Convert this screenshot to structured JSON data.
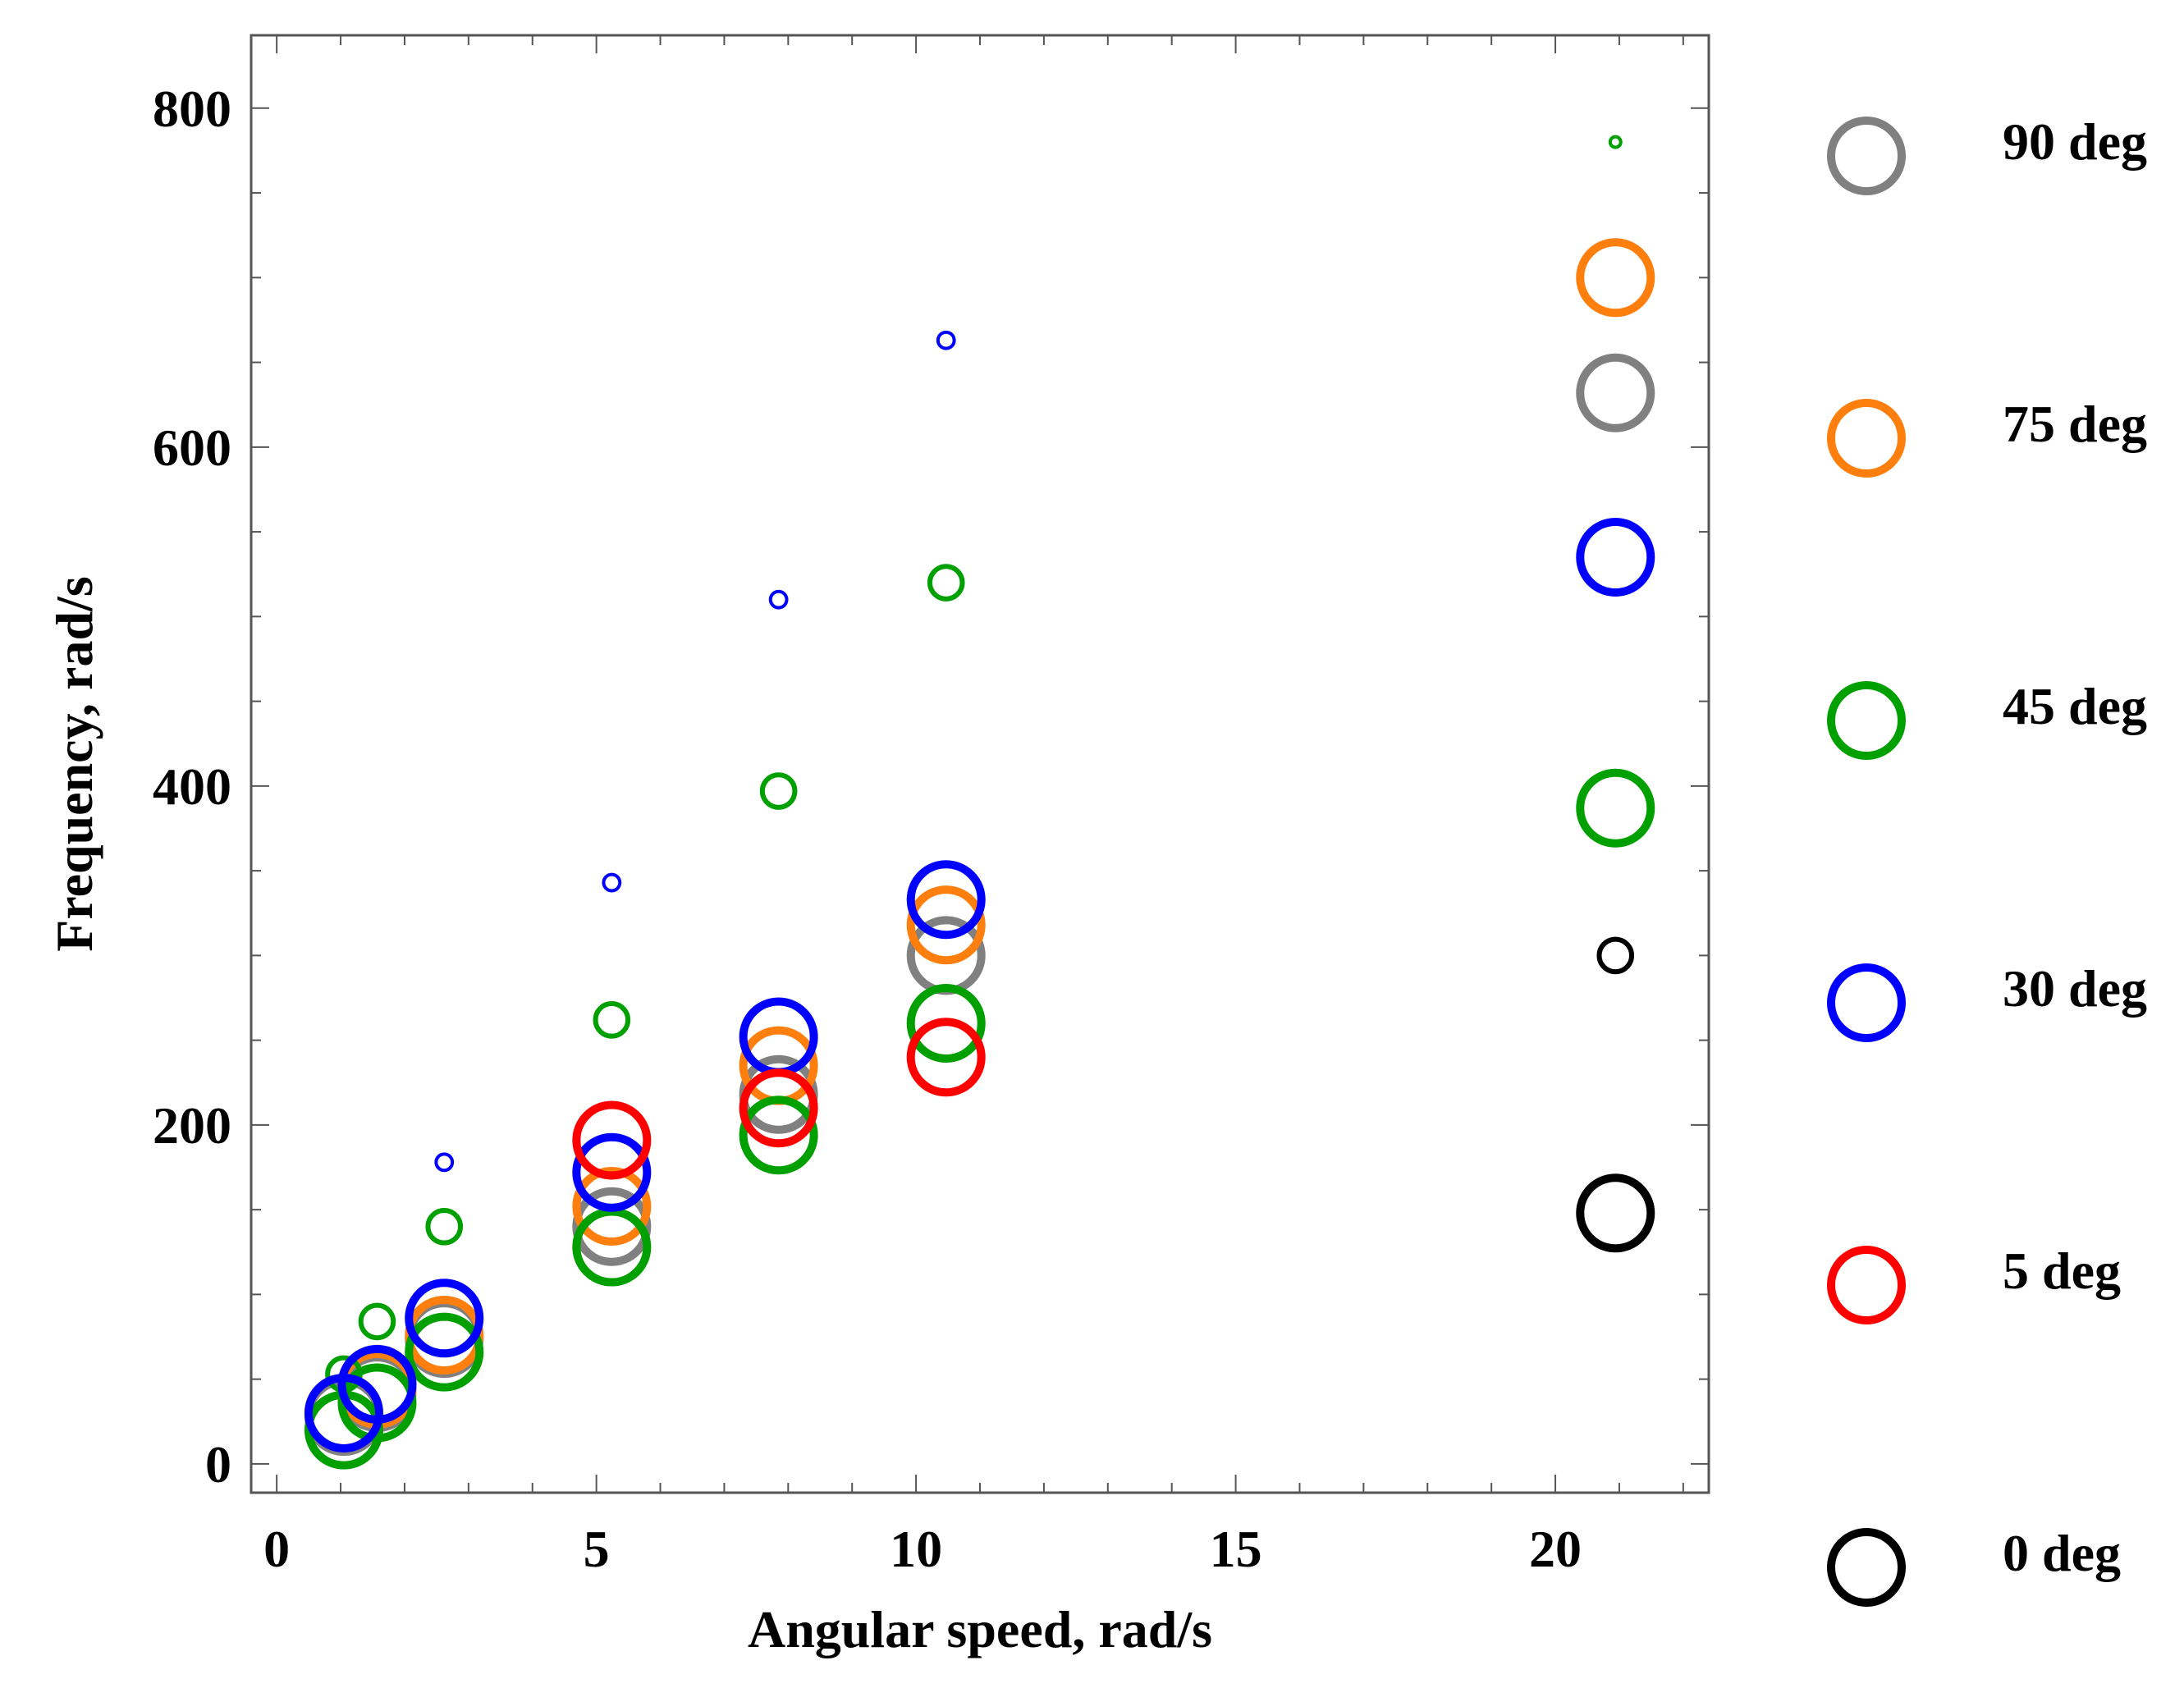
{
  "chart_data": {
    "type": "scatter",
    "title": "",
    "xlabel": "Angular speed, rad/s",
    "ylabel": "Frequency, rad/s",
    "xlim": [
      -0.4,
      22.4
    ],
    "ylim": [
      -17,
      843
    ],
    "xticks": [
      0,
      5,
      10,
      15,
      20
    ],
    "yticks": [
      0,
      200,
      400,
      600,
      800
    ],
    "xtick_labels": [
      "0",
      "5",
      "10",
      "15",
      "20"
    ],
    "ytick_labels": [
      "0",
      "200",
      "400",
      "600",
      "800"
    ],
    "marker": "open-circle",
    "legend_position": "right",
    "series": [
      {
        "name": "90 deg",
        "color": "#808080",
        "points": [
          {
            "x": 1.05,
            "y": 28,
            "size": 1.0
          },
          {
            "x": 1.57,
            "y": 42,
            "size": 1.0
          },
          {
            "x": 2.62,
            "y": 74,
            "size": 1.0
          },
          {
            "x": 5.24,
            "y": 140,
            "size": 1.0
          },
          {
            "x": 7.85,
            "y": 218,
            "size": 1.0
          },
          {
            "x": 10.47,
            "y": 300,
            "size": 1.0
          },
          {
            "x": 20.94,
            "y": 632,
            "size": 1.0
          }
        ]
      },
      {
        "name": "75 deg",
        "color": "#ff7f0e",
        "points": [
          {
            "x": 1.05,
            "y": 30,
            "size": 1.0
          },
          {
            "x": 1.57,
            "y": 44,
            "size": 1.0
          },
          {
            "x": 2.62,
            "y": 76,
            "size": 1.0
          },
          {
            "x": 5.24,
            "y": 152,
            "size": 1.0
          },
          {
            "x": 7.85,
            "y": 235,
            "size": 1.0
          },
          {
            "x": 10.47,
            "y": 318,
            "size": 1.0
          },
          {
            "x": 20.94,
            "y": 700,
            "size": 1.0
          }
        ]
      },
      {
        "name": "45 deg",
        "color": "#00a000",
        "points": [
          {
            "x": 1.05,
            "y": 20,
            "size": 1.0
          },
          {
            "x": 1.05,
            "y": 53,
            "size": 0.46
          },
          {
            "x": 1.57,
            "y": 36,
            "size": 1.0
          },
          {
            "x": 1.57,
            "y": 84,
            "size": 0.46
          },
          {
            "x": 2.62,
            "y": 66,
            "size": 1.0
          },
          {
            "x": 2.62,
            "y": 140,
            "size": 0.46
          },
          {
            "x": 5.24,
            "y": 128,
            "size": 1.0
          },
          {
            "x": 5.24,
            "y": 262,
            "size": 0.46
          },
          {
            "x": 7.85,
            "y": 194,
            "size": 1.0
          },
          {
            "x": 7.85,
            "y": 397,
            "size": 0.46
          },
          {
            "x": 10.47,
            "y": 260,
            "size": 1.0
          },
          {
            "x": 10.47,
            "y": 520,
            "size": 0.46
          },
          {
            "x": 20.94,
            "y": 387,
            "size": 1.0
          },
          {
            "x": 20.94,
            "y": 780,
            "size": 0.15
          }
        ]
      },
      {
        "name": "30 deg",
        "color": "#0000ff",
        "points": [
          {
            "x": 1.05,
            "y": 30,
            "size": 1.0
          },
          {
            "x": 1.57,
            "y": 47,
            "size": 1.0
          },
          {
            "x": 2.62,
            "y": 86,
            "size": 1.0
          },
          {
            "x": 2.62,
            "y": 178,
            "size": 0.23
          },
          {
            "x": 5.24,
            "y": 172,
            "size": 1.0
          },
          {
            "x": 5.24,
            "y": 343,
            "size": 0.23
          },
          {
            "x": 7.85,
            "y": 252,
            "size": 1.0
          },
          {
            "x": 7.85,
            "y": 510,
            "size": 0.23
          },
          {
            "x": 10.47,
            "y": 333,
            "size": 1.0
          },
          {
            "x": 10.47,
            "y": 663,
            "size": 0.23
          },
          {
            "x": 20.94,
            "y": 535,
            "size": 1.0
          }
        ]
      },
      {
        "name": "5 deg",
        "color": "#ff0000",
        "points": [
          {
            "x": 5.24,
            "y": 191,
            "size": 1.0
          },
          {
            "x": 7.85,
            "y": 210,
            "size": 1.0
          },
          {
            "x": 10.47,
            "y": 240,
            "size": 1.0
          }
        ]
      },
      {
        "name": "0 deg",
        "color": "#000000",
        "points": [
          {
            "x": 20.94,
            "y": 148,
            "size": 1.0
          },
          {
            "x": 20.94,
            "y": 300,
            "size": 0.46
          }
        ]
      }
    ],
    "legend": [
      {
        "label": "90 deg",
        "color": "#808080"
      },
      {
        "label": "75 deg",
        "color": "#ff7f0e"
      },
      {
        "label": "45 deg",
        "color": "#00a000"
      },
      {
        "label": "30 deg",
        "color": "#0000ff"
      },
      {
        "label": "5 deg",
        "color": "#ff0000"
      },
      {
        "label": "0 deg",
        "color": "#000000"
      }
    ]
  }
}
